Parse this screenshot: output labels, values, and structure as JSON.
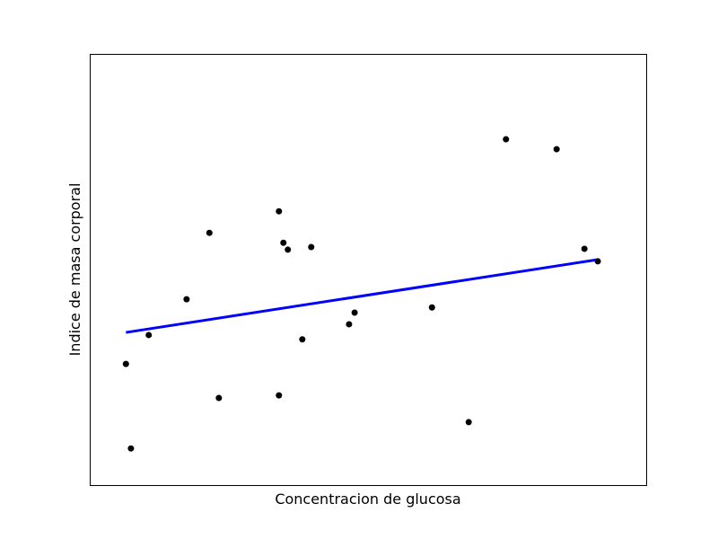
{
  "chart_data": {
    "type": "scatter",
    "title": "",
    "xlabel": "Concentracion de glucosa",
    "ylabel": "Indice de masa corporal",
    "xlim": [
      0,
      100
    ],
    "ylim": [
      0,
      100
    ],
    "ticks_visible": false,
    "grid": false,
    "legend": "none",
    "colors": {
      "points": "#000000",
      "fit_line": "#0000ff"
    },
    "points": [
      {
        "x": 6.5,
        "y": 28.1
      },
      {
        "x": 7.4,
        "y": 8.5
      },
      {
        "x": 10.6,
        "y": 34.8
      },
      {
        "x": 17.4,
        "y": 43.1
      },
      {
        "x": 21.5,
        "y": 58.5
      },
      {
        "x": 23.2,
        "y": 20.2
      },
      {
        "x": 34.0,
        "y": 20.8
      },
      {
        "x": 34.0,
        "y": 63.5
      },
      {
        "x": 34.8,
        "y": 56.2
      },
      {
        "x": 35.6,
        "y": 54.6
      },
      {
        "x": 38.2,
        "y": 33.8
      },
      {
        "x": 39.8,
        "y": 55.2
      },
      {
        "x": 46.6,
        "y": 37.3
      },
      {
        "x": 47.6,
        "y": 40.0
      },
      {
        "x": 61.5,
        "y": 41.2
      },
      {
        "x": 68.1,
        "y": 14.6
      },
      {
        "x": 74.8,
        "y": 80.2
      },
      {
        "x": 83.9,
        "y": 77.9
      },
      {
        "x": 88.9,
        "y": 54.8
      },
      {
        "x": 91.3,
        "y": 51.9
      }
    ],
    "fit_line": {
      "x": [
        6.5,
        91.3
      ],
      "y": [
        35.4,
        52.3
      ]
    }
  }
}
